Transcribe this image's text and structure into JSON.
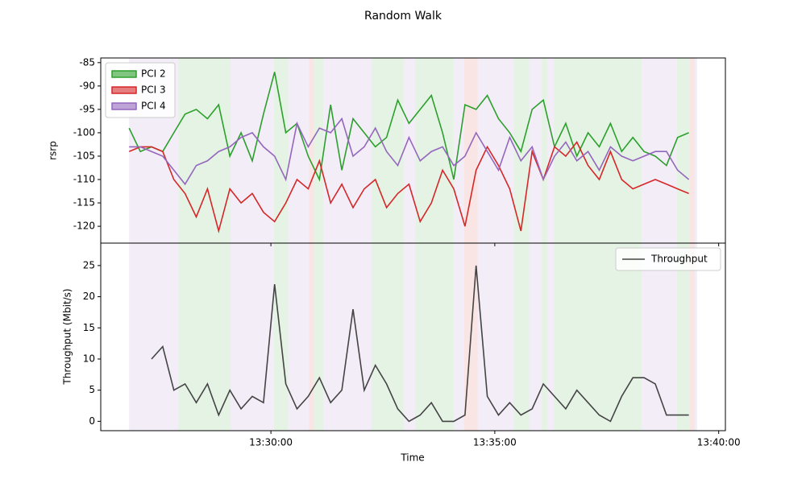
{
  "chart_data": [
    {
      "type": "line",
      "title": "Random Walk",
      "ylabel": "rsrp",
      "legend": "upper left",
      "x": [
        "13:26:50",
        "13:27:05",
        "13:27:20",
        "13:27:35",
        "13:27:50",
        "13:28:05",
        "13:28:20",
        "13:28:35",
        "13:28:50",
        "13:29:05",
        "13:29:20",
        "13:29:35",
        "13:29:50",
        "13:30:05",
        "13:30:20",
        "13:30:35",
        "13:30:50",
        "13:31:05",
        "13:31:20",
        "13:31:35",
        "13:31:50",
        "13:32:05",
        "13:32:20",
        "13:32:35",
        "13:32:50",
        "13:33:05",
        "13:33:20",
        "13:33:35",
        "13:33:50",
        "13:34:05",
        "13:34:20",
        "13:34:35",
        "13:34:50",
        "13:35:05",
        "13:35:20",
        "13:35:35",
        "13:35:50",
        "13:36:05",
        "13:36:20",
        "13:36:35",
        "13:36:50",
        "13:37:05",
        "13:37:20",
        "13:37:35",
        "13:37:50",
        "13:38:05",
        "13:38:20",
        "13:38:35",
        "13:38:50",
        "13:39:05",
        "13:39:20"
      ],
      "xlim": [
        "13:26:12",
        "13:40:09"
      ],
      "xticks": [
        "13:30:00",
        "13:35:00",
        "13:40:00"
      ],
      "ylim": [
        -123.6,
        -84
      ],
      "yticks": [
        -85,
        -90,
        -95,
        -100,
        -105,
        -110,
        -115,
        -120
      ],
      "series": [
        {
          "name": "PCI 2",
          "color": "#2ca02c",
          "values": [
            -99,
            -104,
            -103,
            -104,
            -100,
            -96,
            -95,
            -97,
            -94,
            -105,
            -100,
            -106,
            -96,
            -87,
            -100,
            -98,
            -105,
            -110,
            -94,
            -108,
            -97,
            -100,
            -103,
            -101,
            -93,
            -98,
            -95,
            -92,
            -100,
            -110,
            -94,
            -95,
            -92,
            -97,
            -100,
            -104,
            -95,
            -93,
            -103,
            -98,
            -105,
            -100,
            -103,
            -98,
            -104,
            -101,
            -104,
            -105,
            -107,
            -101,
            -100
          ]
        },
        {
          "name": "PCI 3",
          "color": "#d62728",
          "values": [
            -104,
            -103,
            -103,
            -104,
            -110,
            -113,
            -118,
            -112,
            -121,
            -112,
            -115,
            -113,
            -117,
            -119,
            -115,
            -110,
            -112,
            -106,
            -115,
            -111,
            -116,
            -112,
            -110,
            -116,
            -113,
            -111,
            -119,
            -115,
            -108,
            -112,
            -120,
            -108,
            -103,
            -107,
            -112,
            -121,
            -104,
            -110,
            -103,
            -105,
            -102,
            -107,
            -110,
            -104,
            -110,
            -112,
            -111,
            -110,
            -111,
            -112,
            -113
          ]
        },
        {
          "name": "PCI 4",
          "color": "#9467bd",
          "values": [
            -103,
            -103,
            -104,
            -105,
            -108,
            -111,
            -107,
            -106,
            -104,
            -103,
            -101,
            -100,
            -103,
            -105,
            -110,
            -98,
            -103,
            -99,
            -100,
            -97,
            -105,
            -103,
            -99,
            -104,
            -107,
            -101,
            -106,
            -104,
            -103,
            -107,
            -105,
            -100,
            -104,
            -108,
            -101,
            -106,
            -103,
            -110,
            -105,
            -102,
            -106,
            -104,
            -108,
            -103,
            -105,
            -106,
            -105,
            -104,
            -104,
            -108,
            -110
          ]
        }
      ],
      "regions": [
        {
          "name": "PCI 4",
          "start": "13:26:50",
          "end": "13:27:56"
        },
        {
          "name": "PCI 2",
          "start": "13:27:56",
          "end": "13:29:06"
        },
        {
          "name": "PCI 4",
          "start": "13:29:06",
          "end": "13:30:04"
        },
        {
          "name": "PCI 2",
          "start": "13:30:04",
          "end": "13:30:23"
        },
        {
          "name": "PCI 4",
          "start": "13:30:23",
          "end": "13:30:51"
        },
        {
          "name": "PCI 3",
          "start": "13:30:51",
          "end": "13:30:57"
        },
        {
          "name": "PCI 2",
          "start": "13:30:57",
          "end": "13:31:10"
        },
        {
          "name": "PCI 4",
          "start": "13:31:10",
          "end": "13:32:15"
        },
        {
          "name": "PCI 2",
          "start": "13:32:15",
          "end": "13:32:58"
        },
        {
          "name": "PCI 4",
          "start": "13:32:58",
          "end": "13:33:14"
        },
        {
          "name": "PCI 2",
          "start": "13:33:14",
          "end": "13:34:05"
        },
        {
          "name": "PCI 4",
          "start": "13:34:05",
          "end": "13:34:19"
        },
        {
          "name": "PCI 3",
          "start": "13:34:19",
          "end": "13:34:37"
        },
        {
          "name": "PCI 4",
          "start": "13:34:37",
          "end": "13:35:25"
        },
        {
          "name": "PCI 2",
          "start": "13:35:25",
          "end": "13:35:46"
        },
        {
          "name": "PCI 4",
          "start": "13:35:46",
          "end": "13:36:03"
        },
        {
          "name": "PCI 2",
          "start": "13:36:03",
          "end": "13:36:10"
        },
        {
          "name": "PCI 4",
          "start": "13:36:10",
          "end": "13:36:19"
        },
        {
          "name": "PCI 2",
          "start": "13:36:19",
          "end": "13:38:17"
        },
        {
          "name": "PCI 4",
          "start": "13:38:17",
          "end": "13:39:04"
        },
        {
          "name": "PCI 2",
          "start": "13:39:04",
          "end": "13:39:21"
        },
        {
          "name": "PCI 3",
          "start": "13:39:21",
          "end": "13:39:28"
        },
        {
          "name": "PCI 4",
          "start": "13:39:28",
          "end": "13:39:31"
        }
      ]
    },
    {
      "type": "line",
      "xlabel": "Time",
      "ylabel": "Throughput (Mbit/s)",
      "legend": "upper right",
      "x": [
        "13:26:50",
        "13:27:05",
        "13:27:20",
        "13:27:35",
        "13:27:50",
        "13:28:05",
        "13:28:20",
        "13:28:35",
        "13:28:50",
        "13:29:05",
        "13:29:20",
        "13:29:35",
        "13:29:50",
        "13:30:05",
        "13:30:20",
        "13:30:35",
        "13:30:50",
        "13:31:05",
        "13:31:20",
        "13:31:35",
        "13:31:50",
        "13:32:05",
        "13:32:20",
        "13:32:35",
        "13:32:50",
        "13:33:05",
        "13:33:20",
        "13:33:35",
        "13:33:50",
        "13:34:05",
        "13:34:20",
        "13:34:35",
        "13:34:50",
        "13:35:05",
        "13:35:20",
        "13:35:35",
        "13:35:50",
        "13:36:05",
        "13:36:20",
        "13:36:35",
        "13:36:50",
        "13:37:05",
        "13:37:20",
        "13:37:35",
        "13:37:50",
        "13:38:05",
        "13:38:20",
        "13:38:35",
        "13:38:50",
        "13:39:05",
        "13:39:20"
      ],
      "xlim": [
        "13:26:12",
        "13:40:09"
      ],
      "xticks": [
        "13:30:00",
        "13:35:00",
        "13:40:00"
      ],
      "ylim": [
        -1.5,
        28.6
      ],
      "yticks": [
        0,
        5,
        10,
        15,
        20,
        25
      ],
      "series": [
        {
          "name": "Throughput",
          "color": "#444444",
          "values": [
            null,
            null,
            10,
            12,
            5,
            6,
            3,
            6,
            1,
            5,
            2,
            4,
            3,
            22,
            6,
            2,
            4,
            7,
            3,
            5,
            18,
            5,
            9,
            6,
            2,
            0,
            1,
            3,
            0,
            0,
            1,
            25,
            4,
            1,
            3,
            1,
            2,
            6,
            4,
            2,
            5,
            3,
            1,
            0,
            4,
            7,
            7,
            6,
            1,
            1,
            1
          ]
        }
      ]
    }
  ]
}
